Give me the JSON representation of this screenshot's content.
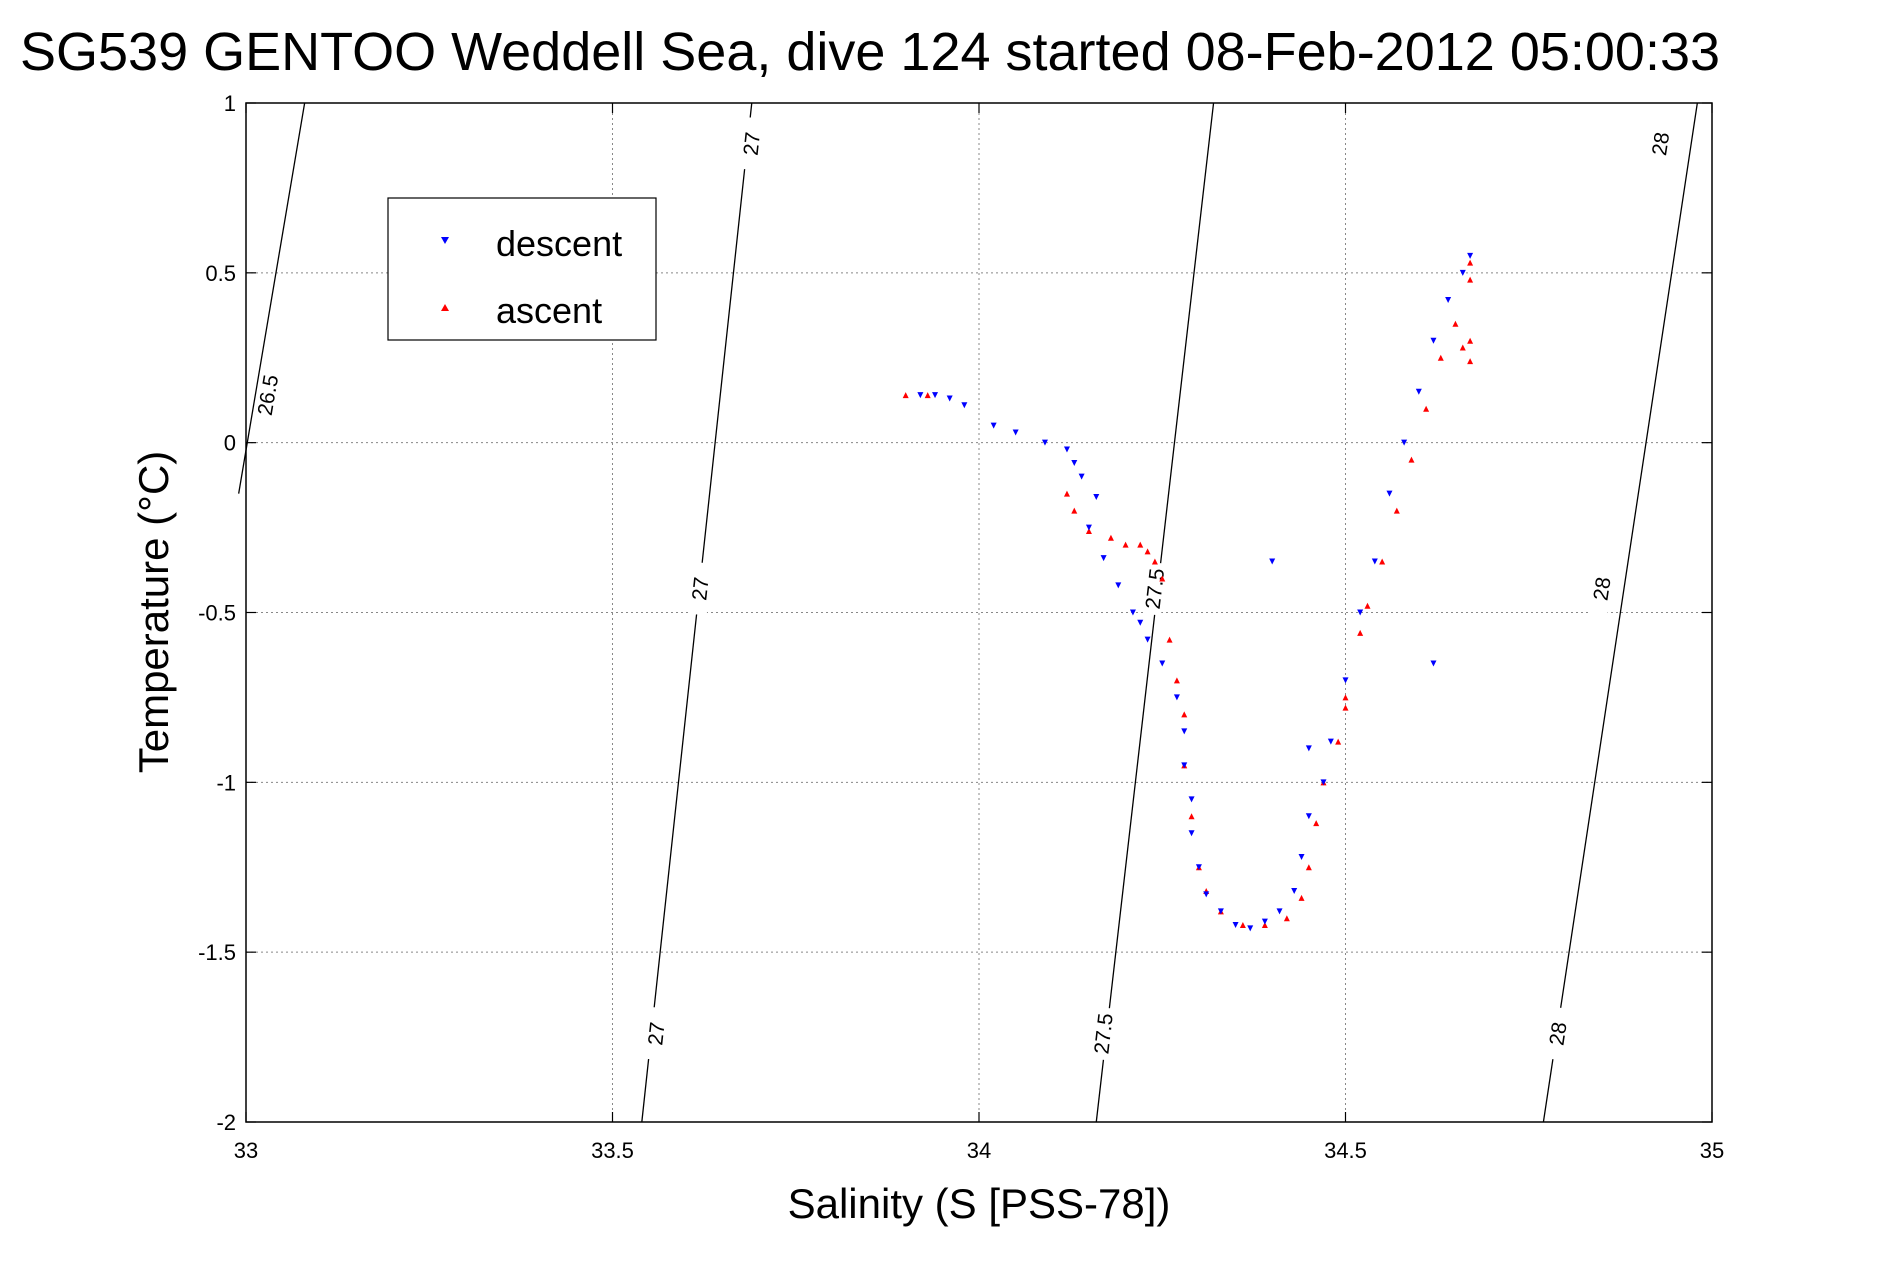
{
  "chart_data": {
    "type": "scatter",
    "title": "SG539 GENTOO Weddell Sea, dive 124 started 08-Feb-2012 05:00:33",
    "xlabel": "Salinity (S [PSS-78])",
    "ylabel": "Temperature (°C)",
    "xlim": [
      33,
      35
    ],
    "ylim": [
      -2,
      1
    ],
    "xticks": [
      "33",
      "33.5",
      "34",
      "34.5",
      "35"
    ],
    "yticks": [
      "1",
      "0.5",
      "0",
      "-0.5",
      "-1",
      "-1.5",
      "-2"
    ],
    "grid": true,
    "legend": {
      "placement": "top-left",
      "entries": [
        {
          "name": "descent",
          "color": "#0000ff",
          "marker": "triangle-down"
        },
        {
          "name": "ascent",
          "color": "#ff0000",
          "marker": "triangle-up"
        }
      ]
    },
    "isopycnals": [
      {
        "value": "26.5",
        "points": [
          [
            33.08,
            1.0
          ],
          [
            32.99,
            -0.15
          ]
        ],
        "labels": [
          [
            33.03,
            0.14
          ]
        ]
      },
      {
        "value": "27",
        "points": [
          [
            33.69,
            1.0
          ],
          [
            33.54,
            -2.0
          ]
        ],
        "labels": [
          [
            33.69,
            0.88
          ],
          [
            33.62,
            -0.43
          ],
          [
            33.56,
            -1.74
          ]
        ]
      },
      {
        "value": "27.5",
        "points": [
          [
            34.32,
            1.0
          ],
          [
            34.16,
            -2.0
          ]
        ],
        "labels": [
          [
            34.24,
            -0.43
          ],
          [
            34.17,
            -1.74
          ]
        ]
      },
      {
        "value": "28",
        "points": [
          [
            34.98,
            1.0
          ],
          [
            34.77,
            -2.0
          ]
        ],
        "labels": [
          [
            34.93,
            0.88
          ],
          [
            34.85,
            -0.43
          ],
          [
            34.79,
            -1.74
          ]
        ]
      }
    ],
    "series": [
      {
        "name": "descent",
        "color": "#0000ff",
        "marker": "triangle-down",
        "points": [
          [
            33.92,
            0.14
          ],
          [
            33.94,
            0.14
          ],
          [
            33.96,
            0.13
          ],
          [
            33.98,
            0.11
          ],
          [
            34.02,
            0.05
          ],
          [
            34.05,
            0.03
          ],
          [
            34.09,
            0.0
          ],
          [
            34.12,
            -0.02
          ],
          [
            34.13,
            -0.06
          ],
          [
            34.14,
            -0.1
          ],
          [
            34.16,
            -0.16
          ],
          [
            34.15,
            -0.25
          ],
          [
            34.17,
            -0.34
          ],
          [
            34.19,
            -0.42
          ],
          [
            34.21,
            -0.5
          ],
          [
            34.22,
            -0.53
          ],
          [
            34.23,
            -0.58
          ],
          [
            34.25,
            -0.65
          ],
          [
            34.27,
            -0.75
          ],
          [
            34.28,
            -0.85
          ],
          [
            34.28,
            -0.95
          ],
          [
            34.29,
            -1.05
          ],
          [
            34.29,
            -1.15
          ],
          [
            34.3,
            -1.25
          ],
          [
            34.31,
            -1.33
          ],
          [
            34.33,
            -1.38
          ],
          [
            34.35,
            -1.42
          ],
          [
            34.37,
            -1.43
          ],
          [
            34.39,
            -1.41
          ],
          [
            34.41,
            -1.38
          ],
          [
            34.43,
            -1.32
          ],
          [
            34.44,
            -1.22
          ],
          [
            34.45,
            -1.1
          ],
          [
            34.47,
            -1.0
          ],
          [
            34.48,
            -0.88
          ],
          [
            34.5,
            -0.7
          ],
          [
            34.52,
            -0.5
          ],
          [
            34.54,
            -0.35
          ],
          [
            34.56,
            -0.15
          ],
          [
            34.58,
            0.0
          ],
          [
            34.6,
            0.15
          ],
          [
            34.62,
            0.3
          ],
          [
            34.64,
            0.42
          ],
          [
            34.66,
            0.5
          ],
          [
            34.67,
            0.55
          ],
          [
            34.62,
            -0.65
          ],
          [
            34.4,
            -0.35
          ],
          [
            34.45,
            -0.9
          ]
        ]
      },
      {
        "name": "ascent",
        "color": "#ff0000",
        "marker": "triangle-up",
        "points": [
          [
            33.9,
            0.14
          ],
          [
            33.93,
            0.14
          ],
          [
            34.12,
            -0.15
          ],
          [
            34.13,
            -0.2
          ],
          [
            34.15,
            -0.26
          ],
          [
            34.18,
            -0.28
          ],
          [
            34.2,
            -0.3
          ],
          [
            34.22,
            -0.3
          ],
          [
            34.23,
            -0.32
          ],
          [
            34.24,
            -0.35
          ],
          [
            34.25,
            -0.4
          ],
          [
            34.26,
            -0.58
          ],
          [
            34.27,
            -0.7
          ],
          [
            34.28,
            -0.8
          ],
          [
            34.28,
            -0.95
          ],
          [
            34.29,
            -1.1
          ],
          [
            34.3,
            -1.25
          ],
          [
            34.31,
            -1.32
          ],
          [
            34.33,
            -1.38
          ],
          [
            34.36,
            -1.42
          ],
          [
            34.39,
            -1.42
          ],
          [
            34.42,
            -1.4
          ],
          [
            34.44,
            -1.34
          ],
          [
            34.45,
            -1.25
          ],
          [
            34.46,
            -1.12
          ],
          [
            34.47,
            -1.0
          ],
          [
            34.49,
            -0.88
          ],
          [
            34.5,
            -0.75
          ],
          [
            34.52,
            -0.56
          ],
          [
            34.53,
            -0.48
          ],
          [
            34.55,
            -0.35
          ],
          [
            34.57,
            -0.2
          ],
          [
            34.59,
            -0.05
          ],
          [
            34.61,
            0.1
          ],
          [
            34.63,
            0.25
          ],
          [
            34.65,
            0.35
          ],
          [
            34.67,
            0.48
          ],
          [
            34.67,
            0.53
          ],
          [
            34.67,
            0.3
          ],
          [
            34.67,
            0.24
          ],
          [
            34.66,
            0.28
          ],
          [
            34.5,
            -0.78
          ]
        ]
      }
    ]
  }
}
